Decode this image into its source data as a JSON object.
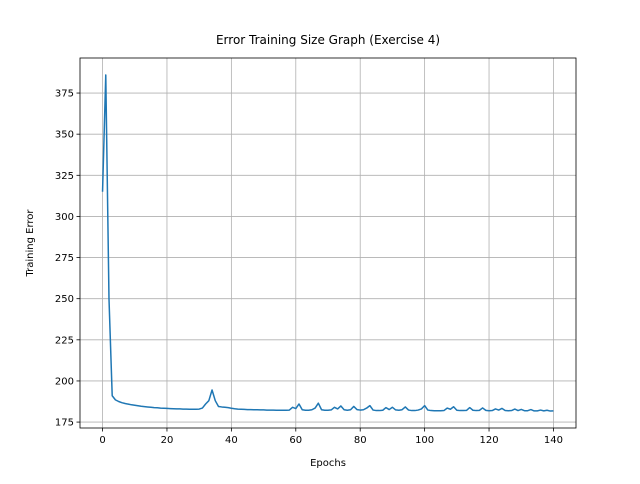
{
  "chart_data": {
    "type": "line",
    "title": "Error Training Size Graph (Exercise 4)",
    "x_label": "Epochs",
    "y_label": "Training Error",
    "x": [
      0,
      1,
      2,
      3,
      4,
      5,
      6,
      7,
      8,
      9,
      10,
      11,
      12,
      13,
      14,
      15,
      16,
      17,
      18,
      19,
      20,
      21,
      22,
      23,
      24,
      25,
      26,
      27,
      28,
      29,
      30,
      31,
      32,
      33,
      34,
      35,
      36,
      37,
      38,
      39,
      40,
      41,
      42,
      43,
      44,
      45,
      46,
      47,
      48,
      49,
      50,
      51,
      52,
      53,
      54,
      55,
      56,
      57,
      58,
      59,
      60,
      61,
      62,
      63,
      64,
      65,
      66,
      67,
      68,
      69,
      70,
      71,
      72,
      73,
      74,
      75,
      76,
      77,
      78,
      79,
      80,
      81,
      82,
      83,
      84,
      85,
      86,
      87,
      88,
      89,
      90,
      91,
      92,
      93,
      94,
      95,
      96,
      97,
      98,
      99,
      100,
      101,
      102,
      103,
      104,
      105,
      106,
      107,
      108,
      109,
      110,
      111,
      112,
      113,
      114,
      115,
      116,
      117,
      118,
      119,
      120,
      121,
      122,
      123,
      124,
      125,
      126,
      127,
      128,
      129,
      130,
      131,
      132,
      133,
      134,
      135,
      136,
      137,
      138,
      139,
      140
    ],
    "series": [
      {
        "color": "#1f77b4",
        "values": [
          315,
          386,
          250,
          191,
          188.5,
          187.5,
          186.8,
          186.3,
          185.9,
          185.5,
          185.2,
          184.9,
          184.6,
          184.4,
          184.2,
          184,
          183.8,
          183.7,
          183.5,
          183.4,
          183.3,
          183.2,
          183.1,
          183,
          183,
          182.9,
          182.9,
          182.8,
          182.8,
          182.8,
          182.9,
          183.5,
          186,
          188,
          194.5,
          188,
          184.5,
          184.2,
          184,
          183.8,
          183.4,
          183.1,
          182.9,
          182.8,
          182.7,
          182.6,
          182.6,
          182.5,
          182.5,
          182.4,
          182.4,
          182.3,
          182.3,
          182.3,
          182.2,
          182.2,
          182.2,
          182.2,
          182.3,
          184,
          183.2,
          186,
          182.5,
          182.2,
          182.2,
          182.5,
          183.5,
          186.5,
          182.5,
          182.2,
          182.2,
          182.4,
          184,
          183,
          184.8,
          182.5,
          182.2,
          182.5,
          184.5,
          182.6,
          182.3,
          182.5,
          183.5,
          185,
          182.3,
          182,
          182,
          182.2,
          183.8,
          182.6,
          184,
          182.4,
          182.2,
          182.5,
          184.2,
          182.3,
          182,
          182,
          182.3,
          183,
          185,
          182.3,
          182,
          181.9,
          181.9,
          181.9,
          182,
          183.5,
          182.8,
          184.3,
          182.2,
          182,
          182,
          182.1,
          183.8,
          182.2,
          182,
          182.1,
          183.6,
          182.1,
          181.9,
          182,
          183,
          182.3,
          183.3,
          182,
          181.9,
          182,
          182.9,
          182,
          182.7,
          181.9,
          181.9,
          182.6,
          181.8,
          181.8,
          182.3,
          181.8,
          182.2,
          181.7,
          181.8
        ]
      }
    ],
    "xlim": [
      -7,
      147
    ],
    "xticks": [
      0,
      20,
      40,
      60,
      80,
      100,
      120,
      140
    ],
    "ylim": [
      171.4,
      396.3
    ],
    "yticks": [
      175,
      200,
      225,
      250,
      275,
      300,
      325,
      350,
      375
    ],
    "grid": true
  }
}
